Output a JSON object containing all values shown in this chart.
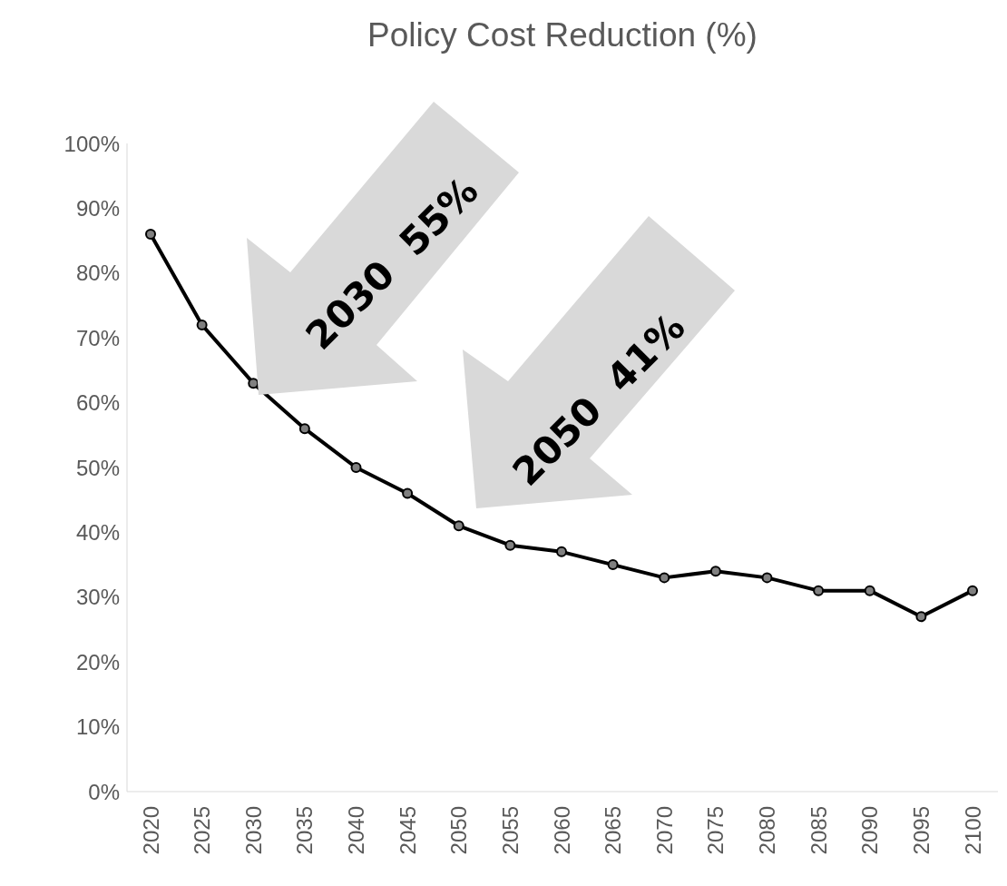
{
  "chart_data": {
    "type": "line",
    "title": "Policy Cost Reduction (%)",
    "categories": [
      "2020",
      "2025",
      "2030",
      "2035",
      "2040",
      "2045",
      "2050",
      "2055",
      "2060",
      "2065",
      "2070",
      "2075",
      "2080",
      "2085",
      "2090",
      "2095",
      "2100"
    ],
    "series": [
      {
        "color": "#000000",
        "values": [
          86,
          72,
          63,
          56,
          50,
          46,
          41,
          38,
          37,
          35,
          33,
          34,
          33,
          31,
          31,
          27,
          31
        ]
      }
    ],
    "ylim": [
      0,
      100
    ],
    "yticks": [
      {
        "value": 0,
        "label": "0%"
      },
      {
        "value": 10,
        "label": "10%"
      },
      {
        "value": 20,
        "label": "20%"
      },
      {
        "value": 30,
        "label": "30%"
      },
      {
        "value": 40,
        "label": "40%"
      },
      {
        "value": 50,
        "label": "50%"
      },
      {
        "value": 60,
        "label": "60%"
      },
      {
        "value": 70,
        "label": "70%"
      },
      {
        "value": 80,
        "label": "80%"
      },
      {
        "value": 90,
        "label": "90%"
      },
      {
        "value": 100,
        "label": "100%"
      }
    ],
    "annotations": [
      "2030  55%",
      "2050  41%"
    ],
    "marker": "circle",
    "line_style": "solid",
    "grid": false,
    "legend": false
  }
}
